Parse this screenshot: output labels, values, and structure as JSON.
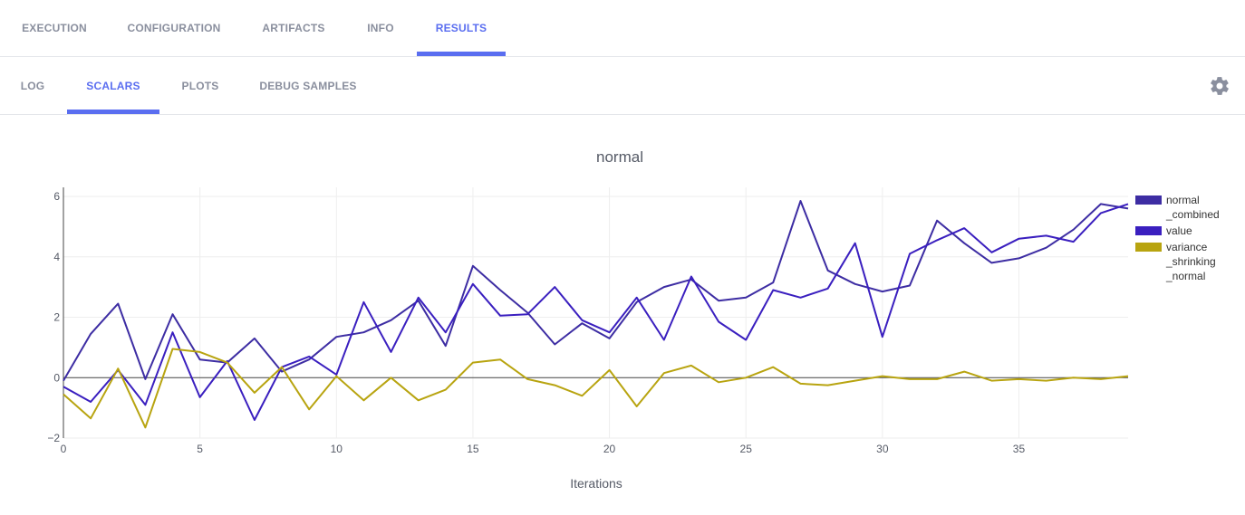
{
  "tabs_top": [
    {
      "label": "EXECUTION",
      "active": false
    },
    {
      "label": "CONFIGURATION",
      "active": false
    },
    {
      "label": "ARTIFACTS",
      "active": false
    },
    {
      "label": "INFO",
      "active": false
    },
    {
      "label": "RESULTS",
      "active": true
    }
  ],
  "tabs_sub": [
    {
      "label": "LOG",
      "active": false
    },
    {
      "label": "SCALARS",
      "active": true
    },
    {
      "label": "PLOTS",
      "active": false
    },
    {
      "label": "DEBUG SAMPLES",
      "active": false
    }
  ],
  "settings_icon": "gear-icon",
  "colors": {
    "accent": "#5a6ef0",
    "series_combined": "#3d2da3",
    "series_value": "#3a1fbf",
    "series_variance": "#b8a410"
  },
  "chart_data": {
    "type": "line",
    "title": "normal",
    "xlabel": "Iterations",
    "ylabel": "",
    "xlim": [
      0,
      39
    ],
    "ylim": [
      -2,
      6.3
    ],
    "x_ticks": [
      0,
      5,
      10,
      15,
      20,
      25,
      30,
      35
    ],
    "y_ticks": [
      -2,
      0,
      2,
      4,
      6
    ],
    "legend_position": "right",
    "x": [
      0,
      1,
      2,
      3,
      4,
      5,
      6,
      7,
      8,
      9,
      10,
      11,
      12,
      13,
      14,
      15,
      16,
      17,
      18,
      19,
      20,
      21,
      22,
      23,
      24,
      25,
      26,
      27,
      28,
      29,
      30,
      31,
      32,
      33,
      34,
      35,
      36,
      37,
      38,
      39
    ],
    "series": [
      {
        "name": "normal_combined",
        "legend_lines": [
          "normal",
          "_combined"
        ],
        "color": "#3d2da3",
        "values": [
          -0.1,
          1.45,
          2.45,
          -0.05,
          2.1,
          0.6,
          0.5,
          1.3,
          0.2,
          0.6,
          1.35,
          1.5,
          1.9,
          2.55,
          1.05,
          3.7,
          2.9,
          2.15,
          1.1,
          1.8,
          1.3,
          2.5,
          3.0,
          3.25,
          2.55,
          2.65,
          3.15,
          5.85,
          3.55,
          3.1,
          2.85,
          3.05,
          5.2,
          4.45,
          3.8,
          3.95,
          4.3,
          4.9,
          5.75,
          5.6
        ]
      },
      {
        "name": "value",
        "legend_lines": [
          "value"
        ],
        "color": "#3a1fbf",
        "values": [
          -0.3,
          -0.8,
          0.25,
          -0.9,
          1.5,
          -0.65,
          0.55,
          -1.4,
          0.35,
          0.7,
          0.1,
          2.5,
          0.85,
          2.65,
          1.5,
          3.1,
          2.05,
          2.1,
          3.0,
          1.9,
          1.5,
          2.65,
          1.25,
          3.35,
          1.85,
          1.25,
          2.9,
          2.65,
          2.95,
          4.45,
          1.35,
          4.1,
          4.55,
          4.95,
          4.15,
          4.6,
          4.7,
          4.5,
          5.45,
          5.75
        ]
      },
      {
        "name": "variance_shrinking_normal",
        "legend_lines": [
          "variance",
          "_shrinking",
          "_normal"
        ],
        "color": "#b8a410",
        "values": [
          -0.55,
          -1.35,
          0.3,
          -1.65,
          0.95,
          0.85,
          0.5,
          -0.5,
          0.35,
          -1.05,
          0.05,
          -0.75,
          0.0,
          -0.75,
          -0.4,
          0.5,
          0.6,
          -0.05,
          -0.25,
          -0.6,
          0.25,
          -0.95,
          0.15,
          0.4,
          -0.15,
          0.0,
          0.35,
          -0.2,
          -0.25,
          -0.1,
          0.05,
          -0.05,
          -0.05,
          0.2,
          -0.1,
          -0.05,
          -0.1,
          0.0,
          -0.05,
          0.05
        ]
      }
    ]
  }
}
